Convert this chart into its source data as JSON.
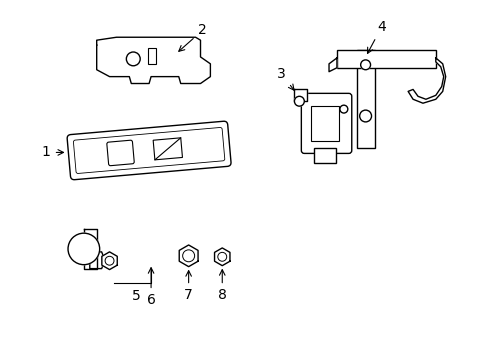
{
  "background_color": "#ffffff",
  "line_color": "#000000",
  "figsize": [
    4.89,
    3.6
  ],
  "dpi": 100,
  "font_size": 10,
  "lw": 1.0
}
